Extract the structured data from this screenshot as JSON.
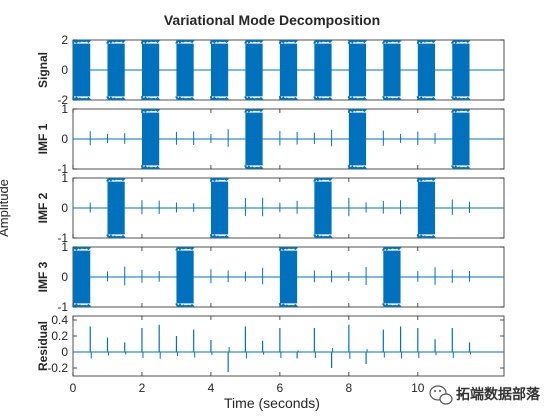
{
  "chart_data": {
    "type": "line",
    "title": "Variational Mode Decomposition",
    "xlabel": "Time (seconds)",
    "ylabel": "Amplitude",
    "xlim": [
      0,
      12.5
    ],
    "x_ticks": [
      "0",
      "2",
      "4",
      "6",
      "8",
      "10"
    ],
    "grid": false,
    "line_color": "#0072BD",
    "bursts": [
      {
        "start": 0.0,
        "end": 0.5,
        "imf": "IMF 3"
      },
      {
        "start": 1.0,
        "end": 1.5,
        "imf": "IMF 2"
      },
      {
        "start": 2.0,
        "end": 2.5,
        "imf": "IMF 1"
      },
      {
        "start": 3.0,
        "end": 3.5,
        "imf": "IMF 3"
      },
      {
        "start": 4.0,
        "end": 4.5,
        "imf": "IMF 2"
      },
      {
        "start": 5.0,
        "end": 5.5,
        "imf": "IMF 1"
      },
      {
        "start": 6.0,
        "end": 6.5,
        "imf": "IMF 3"
      },
      {
        "start": 7.0,
        "end": 7.5,
        "imf": "IMF 2"
      },
      {
        "start": 8.0,
        "end": 8.5,
        "imf": "IMF 1"
      },
      {
        "start": 9.0,
        "end": 9.5,
        "imf": "IMF 3"
      },
      {
        "start": 10.0,
        "end": 10.5,
        "imf": "IMF 2"
      },
      {
        "start": 11.0,
        "end": 11.5,
        "imf": "IMF 1"
      }
    ],
    "panels": [
      {
        "name": "Signal",
        "ylim": [
          -2,
          2
        ],
        "y_ticks": [
          "-2",
          "0",
          "2"
        ],
        "burst_amplitude": 2.0
      },
      {
        "name": "IMF 1",
        "ylim": [
          -1,
          1
        ],
        "y_ticks": [
          "-1",
          "0",
          "1"
        ],
        "burst_amplitude": 1.0
      },
      {
        "name": "IMF 2",
        "ylim": [
          -1,
          1
        ],
        "y_ticks": [
          "-1",
          "0",
          "1"
        ],
        "burst_amplitude": 1.0
      },
      {
        "name": "IMF 3",
        "ylim": [
          -1,
          1
        ],
        "y_ticks": [
          "-1",
          "0",
          "1"
        ],
        "burst_amplitude": 1.0
      },
      {
        "name": "Residual",
        "ylim": [
          -0.3,
          0.45
        ],
        "y_ticks": [
          "-0.2",
          "0",
          "0.2",
          "0.4"
        ],
        "burst_amplitude": 0
      }
    ],
    "residual_spikes": [
      {
        "t": 0.5,
        "v": 0.32
      },
      {
        "t": 1.0,
        "v": 0.18
      },
      {
        "t": 1.5,
        "v": 0.12
      },
      {
        "t": 2.0,
        "v": 0.3
      },
      {
        "t": 2.5,
        "v": 0.34
      },
      {
        "t": 3.0,
        "v": 0.2
      },
      {
        "t": 3.5,
        "v": 0.28
      },
      {
        "t": 4.0,
        "v": 0.15
      },
      {
        "t": 4.5,
        "v": -0.25
      },
      {
        "t": 5.0,
        "v": 0.32
      },
      {
        "t": 5.5,
        "v": 0.14
      },
      {
        "t": 6.0,
        "v": 0.3
      },
      {
        "t": 6.5,
        "v": -0.08
      },
      {
        "t": 7.0,
        "v": 0.3
      },
      {
        "t": 7.5,
        "v": -0.2
      },
      {
        "t": 8.0,
        "v": 0.34
      },
      {
        "t": 8.5,
        "v": -0.15
      },
      {
        "t": 9.0,
        "v": 0.28
      },
      {
        "t": 9.5,
        "v": 0.32
      },
      {
        "t": 10.0,
        "v": 0.3
      },
      {
        "t": 10.5,
        "v": 0.16
      },
      {
        "t": 11.0,
        "v": 0.3
      },
      {
        "t": 11.5,
        "v": 0.12
      }
    ]
  },
  "watermark": {
    "text": "拓端数据部落",
    "icon": "wechat-icon"
  }
}
